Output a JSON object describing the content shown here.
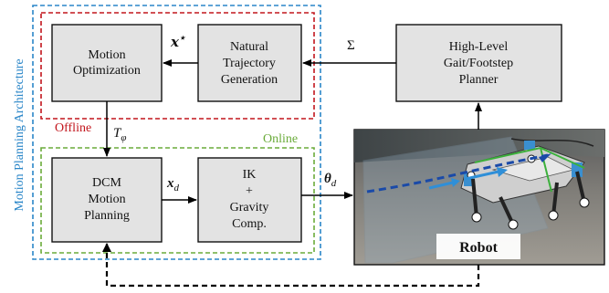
{
  "colors": {
    "architecture_border": "#2a86c8",
    "offline_border": "#c2161d",
    "online_border": "#6aab3a",
    "box_fill": "#e3e3e3",
    "robot_badge_fill": "#ffffff"
  },
  "side_label": "Motion Planning Architecture",
  "regions": {
    "offline": "Offline",
    "online": "Online"
  },
  "blocks": {
    "motion_optimization": [
      "Motion",
      "Optimization"
    ],
    "natural_trajectory": [
      "Natural",
      "Trajectory",
      "Generation"
    ],
    "high_level_planner": [
      "High-Level",
      "Gait/Footstep",
      "Planner"
    ],
    "dcm_planning": [
      "DCM",
      "Motion",
      "Planning"
    ],
    "ik_gravity": [
      "IK",
      "+",
      "Gravity",
      "Comp."
    ]
  },
  "signals": {
    "x_star": "x*",
    "sigma": "Σ",
    "t_phi": "Tφ",
    "x_d": "xd",
    "theta_d": "θd"
  },
  "robot_label": "Robot",
  "icons": {
    "robot_photo": "quadruped-robot-photo"
  }
}
